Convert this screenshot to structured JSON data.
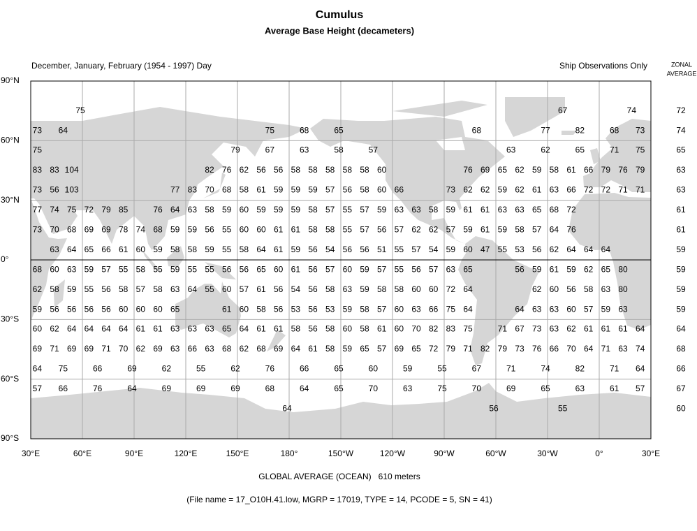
{
  "title": "Cumulus",
  "subtitle": "Average Base Height (decameters)",
  "period": "December, January, February (1954 - 1997) Day",
  "note": "Ship Observations Only",
  "zonal_header": [
    "ZONAL",
    "AVERAGE"
  ],
  "lat_labels": [
    "90°N",
    "60°N",
    "30°N",
    "0°",
    "30°S",
    "60°S",
    "90°S"
  ],
  "lon_labels": [
    "30°E",
    "60°E",
    "90°E",
    "120°E",
    "150°E",
    "180°",
    "150°W",
    "120°W",
    "90°W",
    "60°W",
    "30°W",
    "0°",
    "30°E"
  ],
  "rows": [
    {
      "lat": 75,
      "lon": [
        60,
        -20,
        20
      ],
      "values": [
        75,
        67,
        74
      ],
      "zonal": 72
    },
    {
      "lat": 65,
      "lon": [
        35,
        50,
        170,
        -170,
        -150,
        -70,
        -30,
        -10,
        10,
        25
      ],
      "values": [
        73,
        64,
        75,
        68,
        65,
        68,
        77,
        82,
        68,
        73
      ],
      "zonal": 74
    },
    {
      "lat": 55,
      "lon": [
        35,
        150,
        170,
        -170,
        -150,
        -130,
        -50,
        -30,
        -10,
        10,
        25
      ],
      "values": [
        75,
        79,
        67,
        63,
        58,
        57,
        63,
        62,
        65,
        71,
        75
      ],
      "zonal": 65
    },
    {
      "lat": 45,
      "lon": [
        35,
        45,
        55,
        135,
        145,
        155,
        165,
        175,
        -175,
        -165,
        -155,
        -145,
        -135,
        -125,
        -75,
        -65,
        -55,
        -45,
        -35,
        -25,
        -15,
        -5,
        5,
        15,
        25
      ],
      "values": [
        83,
        83,
        104,
        82,
        76,
        62,
        56,
        56,
        58,
        58,
        58,
        58,
        58,
        60,
        76,
        69,
        65,
        62,
        59,
        58,
        61,
        66,
        79,
        76,
        79
      ],
      "zonal": 63
    },
    {
      "lat": 35,
      "lon": [
        35,
        45,
        55,
        115,
        125,
        135,
        145,
        155,
        165,
        175,
        -175,
        -165,
        -155,
        -145,
        -135,
        -125,
        -115,
        -85,
        -75,
        -65,
        -55,
        -45,
        -35,
        -25,
        -15,
        -5,
        5,
        15,
        25
      ],
      "values": [
        73,
        56,
        103,
        77,
        83,
        70,
        68,
        58,
        61,
        59,
        59,
        59,
        57,
        56,
        58,
        60,
        66,
        73,
        62,
        62,
        59,
        62,
        61,
        63,
        66,
        72,
        72,
        71,
        71
      ],
      "zonal": 63
    },
    {
      "lat": 25,
      "lon": [
        35,
        45,
        55,
        65,
        75,
        85,
        105,
        115,
        125,
        135,
        145,
        155,
        165,
        175,
        -175,
        -165,
        -155,
        -145,
        -135,
        -125,
        -115,
        -105,
        -95,
        -85,
        -75,
        -65,
        -55,
        -45,
        -35,
        -25,
        -15
      ],
      "values": [
        77,
        74,
        75,
        72,
        79,
        85,
        76,
        64,
        63,
        58,
        59,
        60,
        59,
        59,
        59,
        58,
        57,
        55,
        57,
        59,
        63,
        63,
        58,
        59,
        61,
        61,
        63,
        63,
        65,
        68,
        72
      ],
      "zonal": 61
    },
    {
      "lat": 15,
      "lon": [
        35,
        45,
        55,
        65,
        75,
        85,
        95,
        105,
        115,
        125,
        135,
        145,
        155,
        165,
        175,
        -175,
        -165,
        -155,
        -145,
        -135,
        -125,
        -115,
        -105,
        -95,
        -85,
        -75,
        -65,
        -55,
        -45,
        -35,
        -25,
        -15
      ],
      "values": [
        73,
        70,
        68,
        69,
        69,
        78,
        74,
        68,
        59,
        59,
        56,
        55,
        60,
        60,
        61,
        61,
        58,
        58,
        55,
        57,
        56,
        57,
        62,
        62,
        57,
        59,
        61,
        59,
        58,
        57,
        64,
        76
      ],
      "zonal": 61
    },
    {
      "lat": 5,
      "lon": [
        45,
        55,
        65,
        75,
        85,
        95,
        105,
        115,
        125,
        135,
        145,
        155,
        165,
        175,
        -175,
        -165,
        -155,
        -145,
        -135,
        -125,
        -115,
        -105,
        -95,
        -85,
        -75,
        -65,
        -55,
        -45,
        -35,
        -25,
        -15,
        -5,
        5
      ],
      "values": [
        63,
        64,
        65,
        66,
        61,
        60,
        59,
        58,
        58,
        59,
        55,
        58,
        64,
        61,
        59,
        56,
        54,
        56,
        56,
        51,
        55,
        57,
        54,
        59,
        60,
        47,
        55,
        53,
        56,
        62,
        64,
        64,
        64
      ],
      "zonal": 59
    },
    {
      "lat": -5,
      "lon": [
        35,
        45,
        55,
        65,
        75,
        85,
        95,
        105,
        115,
        125,
        135,
        145,
        155,
        165,
        175,
        -175,
        -165,
        -155,
        -145,
        -135,
        -125,
        -115,
        -105,
        -95,
        -85,
        -75,
        -45,
        -35,
        -25,
        -15,
        -5,
        5,
        15
      ],
      "values": [
        68,
        60,
        63,
        59,
        57,
        55,
        58,
        55,
        59,
        55,
        55,
        56,
        56,
        65,
        60,
        61,
        56,
        57,
        60,
        59,
        57,
        55,
        56,
        57,
        63,
        65,
        56,
        59,
        61,
        59,
        62,
        65,
        80
      ],
      "zonal": 59
    },
    {
      "lat": -15,
      "lon": [
        35,
        45,
        55,
        65,
        75,
        85,
        95,
        105,
        115,
        125,
        135,
        145,
        155,
        165,
        175,
        -175,
        -165,
        -155,
        -145,
        -135,
        -125,
        -115,
        -105,
        -95,
        -85,
        -75,
        -35,
        -25,
        -15,
        -5,
        5,
        15
      ],
      "values": [
        62,
        58,
        59,
        55,
        56,
        58,
        57,
        58,
        63,
        64,
        55,
        60,
        57,
        61,
        56,
        54,
        56,
        58,
        63,
        59,
        58,
        58,
        60,
        60,
        72,
        64,
        62,
        60,
        56,
        58,
        63,
        80
      ],
      "zonal": 59
    },
    {
      "lat": -25,
      "lon": [
        35,
        45,
        55,
        65,
        75,
        85,
        95,
        105,
        115,
        145,
        155,
        165,
        175,
        -175,
        -165,
        -155,
        -145,
        -135,
        -125,
        -115,
        -105,
        -95,
        -85,
        -75,
        -45,
        -35,
        -25,
        -15,
        -5,
        5,
        15
      ],
      "values": [
        59,
        56,
        56,
        56,
        56,
        60,
        60,
        60,
        65,
        61,
        60,
        58,
        56,
        53,
        56,
        53,
        59,
        58,
        57,
        60,
        63,
        66,
        75,
        64,
        64,
        63,
        63,
        60,
        57,
        59,
        63
      ],
      "zonal": 59
    },
    {
      "lat": -35,
      "lon": [
        35,
        45,
        55,
        65,
        75,
        85,
        95,
        105,
        115,
        125,
        135,
        145,
        155,
        165,
        175,
        -175,
        -165,
        -155,
        -145,
        -135,
        -125,
        -115,
        -105,
        -95,
        -85,
        -75,
        -55,
        -45,
        -35,
        -25,
        -15,
        -5,
        5,
        15,
        25
      ],
      "values": [
        60,
        62,
        64,
        64,
        64,
        64,
        61,
        61,
        63,
        63,
        63,
        65,
        64,
        61,
        61,
        58,
        56,
        58,
        60,
        58,
        61,
        60,
        70,
        82,
        83,
        75,
        71,
        67,
        73,
        63,
        62,
        61,
        61,
        61,
        64
      ],
      "zonal": 64
    },
    {
      "lat": -45,
      "lon": [
        35,
        45,
        55,
        65,
        75,
        85,
        95,
        105,
        115,
        125,
        135,
        145,
        155,
        165,
        175,
        -175,
        -165,
        -155,
        -145,
        -135,
        -125,
        -115,
        -105,
        -95,
        -85,
        -75,
        -65,
        -55,
        -45,
        -35,
        -25,
        -15,
        -5,
        5,
        15,
        25
      ],
      "values": [
        69,
        71,
        69,
        69,
        71,
        70,
        62,
        69,
        63,
        66,
        63,
        68,
        62,
        68,
        69,
        64,
        61,
        58,
        59,
        65,
        57,
        69,
        65,
        72,
        79,
        71,
        82,
        79,
        73,
        76,
        66,
        70,
        64,
        71,
        63,
        74
      ],
      "zonal": 68
    },
    {
      "lat": -55,
      "lon": [
        35,
        50,
        70,
        90,
        110,
        130,
        150,
        170,
        -170,
        -150,
        -130,
        -110,
        -90,
        -70,
        -50,
        -30,
        -10,
        10,
        25
      ],
      "values": [
        64,
        75,
        66,
        69,
        62,
        55,
        62,
        76,
        66,
        65,
        60,
        59,
        55,
        67,
        71,
        74,
        82,
        71,
        64
      ],
      "zonal": 66
    },
    {
      "lat": -65,
      "lon": [
        35,
        50,
        70,
        90,
        110,
        130,
        150,
        170,
        -170,
        -150,
        -130,
        -110,
        -90,
        -70,
        -50,
        -30,
        -10,
        10,
        25
      ],
      "values": [
        57,
        66,
        76,
        64,
        69,
        69,
        69,
        68,
        64,
        65,
        70,
        63,
        75,
        70,
        69,
        65,
        63,
        61,
        57
      ],
      "zonal": 67
    },
    {
      "lat": -75,
      "lon": [
        180,
        -60,
        -20
      ],
      "values": [
        64,
        56,
        55
      ],
      "zonal": 60
    }
  ],
  "global_average": "GLOBAL AVERAGE (OCEAN)   610 meters",
  "footer": "(File name = 17_O10H.41.low, MGRP = 17019, TYPE = 14, PCODE = 5, SN = 41)"
}
